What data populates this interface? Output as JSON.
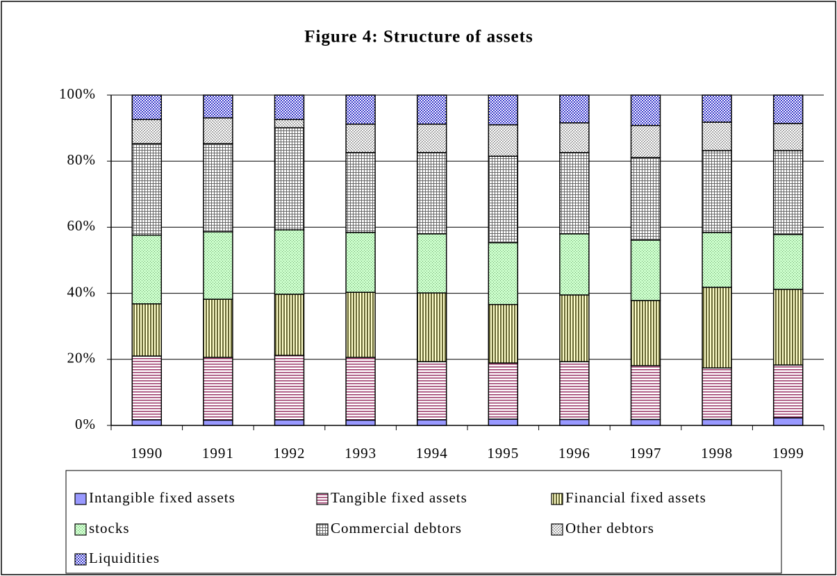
{
  "chart_data": {
    "type": "stacked_bar",
    "title": "Figure 4: Structure of assets",
    "categories": [
      "1990",
      "1991",
      "1992",
      "1993",
      "1994",
      "1995",
      "1996",
      "1997",
      "1998",
      "1999"
    ],
    "series": [
      {
        "name": "Intangible fixed assets",
        "color": "#9999ff",
        "values": [
          1.7,
          1.6,
          1.7,
          1.6,
          1.7,
          1.9,
          1.8,
          1.8,
          1.8,
          2.3
        ]
      },
      {
        "name": "Tangible fixed assets",
        "color": "#993366",
        "values": [
          19.3,
          19.0,
          19.5,
          19.0,
          17.6,
          17.0,
          17.5,
          16.3,
          15.6,
          16.0
        ]
      },
      {
        "name": "Financial fixed assets",
        "color": "#666633",
        "values": [
          15.8,
          17.6,
          18.5,
          19.7,
          20.8,
          17.7,
          20.2,
          19.7,
          24.4,
          22.9
        ]
      },
      {
        "name": "stocks",
        "color": "#669966",
        "values": [
          20.8,
          20.4,
          19.5,
          18.1,
          17.9,
          18.7,
          18.5,
          18.3,
          16.6,
          16.6
        ]
      },
      {
        "name": "Commercial debtors",
        "color": "#666666",
        "values": [
          27.7,
          26.7,
          30.9,
          24.2,
          24.6,
          26.2,
          24.6,
          25.0,
          24.8,
          25.4
        ]
      },
      {
        "name": "Other debtors",
        "color": "#555555",
        "values": [
          7.3,
          7.8,
          2.5,
          8.6,
          8.6,
          9.5,
          9.0,
          9.7,
          8.6,
          8.2
        ]
      },
      {
        "name": "Liquidities",
        "color": "#3333cc",
        "values": [
          7.4,
          6.9,
          7.4,
          8.8,
          8.8,
          9.0,
          8.4,
          9.2,
          8.2,
          8.6
        ]
      }
    ],
    "ylim": [
      0,
      100
    ],
    "yticks": [
      {
        "value": 0,
        "label": "0%"
      },
      {
        "value": 20,
        "label": "20%"
      },
      {
        "value": 40,
        "label": "40%"
      },
      {
        "value": 60,
        "label": "60%"
      },
      {
        "value": 80,
        "label": "80%"
      },
      {
        "value": 100,
        "label": "100%"
      }
    ],
    "grid": true
  }
}
